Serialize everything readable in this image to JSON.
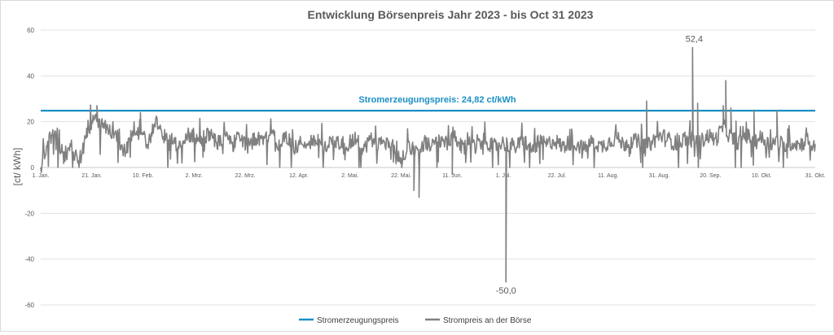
{
  "chart_data": {
    "type": "line",
    "title": "Entwicklung  Börsenpreis Jahr 2023 - bis Oct 31 2023",
    "ylabel": "[ct/ kWh]",
    "xlabel": "",
    "ylim": [
      -60,
      60
    ],
    "yticks": [
      60,
      40,
      20,
      0,
      -20,
      -40,
      -60
    ],
    "xlim": [
      "2023-01-01",
      "2023-10-31"
    ],
    "x_tick_labels": [
      "1. Jan.",
      "21. Jan.",
      "10. Feb.",
      "2. Mrz.",
      "22. Mrz.",
      "12. Apr.",
      "2. Mai.",
      "22. Mai.",
      "11. Jun.",
      "1. Jul.",
      "22. Jul.",
      "11. Aug.",
      "31. Aug.",
      "20. Sep.",
      "10. Okt.",
      "31. Okt."
    ],
    "x_tick_dates": [
      "2023-01-01",
      "2023-01-21",
      "2023-02-10",
      "2023-03-02",
      "2023-03-22",
      "2023-04-12",
      "2023-05-02",
      "2023-05-22",
      "2023-06-11",
      "2023-07-01",
      "2023-07-22",
      "2023-08-11",
      "2023-08-31",
      "2023-09-20",
      "2023-10-10",
      "2023-10-31"
    ],
    "grid": true,
    "legend": "bottom-center",
    "series": [
      {
        "name": "Stromerzeugungspreis",
        "color": "#1a8fc4",
        "constant": 24.82
      },
      {
        "name": "Strompreis an der Börse",
        "color": "#808080",
        "daily_x": [
          "2023-01-01",
          "2023-01-04",
          "2023-01-07",
          "2023-01-10",
          "2023-01-13",
          "2023-01-16",
          "2023-01-19",
          "2023-01-22",
          "2023-01-25",
          "2023-01-28",
          "2023-01-31",
          "2023-02-03",
          "2023-02-06",
          "2023-02-09",
          "2023-02-12",
          "2023-02-15",
          "2023-02-18",
          "2023-02-21",
          "2023-02-24",
          "2023-02-27",
          "2023-03-02",
          "2023-03-05",
          "2023-03-08",
          "2023-03-11",
          "2023-03-14",
          "2023-03-17",
          "2023-03-20",
          "2023-03-23",
          "2023-03-26",
          "2023-03-29",
          "2023-04-01",
          "2023-04-04",
          "2023-04-07",
          "2023-04-10",
          "2023-04-13",
          "2023-04-16",
          "2023-04-19",
          "2023-04-22",
          "2023-04-25",
          "2023-04-28",
          "2023-05-01",
          "2023-05-04",
          "2023-05-07",
          "2023-05-10",
          "2023-05-13",
          "2023-05-16",
          "2023-05-19",
          "2023-05-22",
          "2023-05-25",
          "2023-05-28",
          "2023-05-31",
          "2023-06-03",
          "2023-06-06",
          "2023-06-09",
          "2023-06-12",
          "2023-06-15",
          "2023-06-18",
          "2023-06-21",
          "2023-06-24",
          "2023-06-27",
          "2023-06-30",
          "2023-07-03",
          "2023-07-06",
          "2023-07-09",
          "2023-07-12",
          "2023-07-15",
          "2023-07-18",
          "2023-07-21",
          "2023-07-24",
          "2023-07-27",
          "2023-07-30",
          "2023-08-02",
          "2023-08-05",
          "2023-08-08",
          "2023-08-11",
          "2023-08-14",
          "2023-08-17",
          "2023-08-20",
          "2023-08-23",
          "2023-08-26",
          "2023-08-29",
          "2023-09-01",
          "2023-09-04",
          "2023-09-07",
          "2023-09-10",
          "2023-09-13",
          "2023-09-16",
          "2023-09-19",
          "2023-09-22",
          "2023-09-25",
          "2023-09-28",
          "2023-10-01",
          "2023-10-04",
          "2023-10-07",
          "2023-10-10",
          "2023-10-13",
          "2023-10-16",
          "2023-10-19",
          "2023-10-22",
          "2023-10-25",
          "2023-10-28",
          "2023-10-31"
        ],
        "daily_y": [
          0,
          12,
          14,
          5,
          9,
          2,
          15,
          22,
          18,
          16,
          14,
          6,
          15,
          18,
          10,
          20,
          14,
          12,
          8,
          15,
          14,
          12,
          15,
          11,
          13,
          10,
          14,
          9,
          13,
          11,
          15,
          10,
          14,
          8,
          12,
          10,
          13,
          9,
          12,
          11,
          10,
          13,
          8,
          12,
          10,
          11,
          9,
          2,
          10,
          7,
          11,
          9,
          12,
          10,
          13,
          8,
          11,
          10,
          12,
          9,
          11,
          10,
          9,
          12,
          8,
          11,
          10,
          12,
          9,
          11,
          10,
          8,
          12,
          9,
          11,
          13,
          10,
          12,
          11,
          9,
          12,
          14,
          12,
          10,
          13,
          12,
          11,
          14,
          12,
          18,
          13,
          11,
          14,
          12,
          13,
          10,
          12,
          9,
          11,
          10,
          12,
          8
        ],
        "extremes": [
          {
            "x": "2023-01-01",
            "y": 0
          },
          {
            "x": "2023-01-23",
            "y": 27
          },
          {
            "x": "2023-02-09",
            "y": 24
          },
          {
            "x": "2023-05-27",
            "y": -10
          },
          {
            "x": "2023-05-29",
            "y": -13
          },
          {
            "x": "2023-06-11",
            "y": -3
          },
          {
            "x": "2023-07-02",
            "y": -50.0
          },
          {
            "x": "2023-08-26",
            "y": 29
          },
          {
            "x": "2023-09-13",
            "y": 52.4
          },
          {
            "x": "2023-09-15",
            "y": 28
          },
          {
            "x": "2023-09-25",
            "y": 27
          },
          {
            "x": "2023-09-26",
            "y": 38
          },
          {
            "x": "2023-09-28",
            "y": 26
          },
          {
            "x": "2023-10-07",
            "y": 25
          },
          {
            "x": "2023-10-16",
            "y": 25
          }
        ]
      }
    ],
    "annotations": [
      {
        "text": "Stromerzeugungspreis: 24,82 ct/kWh",
        "x": "2023-05-25",
        "y": 24.82,
        "color": "#1a8fc4"
      },
      {
        "text": "52,4",
        "x": "2023-09-13",
        "y": 52.4
      },
      {
        "text": "-50,0",
        "x": "2023-07-02",
        "y": -50.0
      }
    ]
  }
}
